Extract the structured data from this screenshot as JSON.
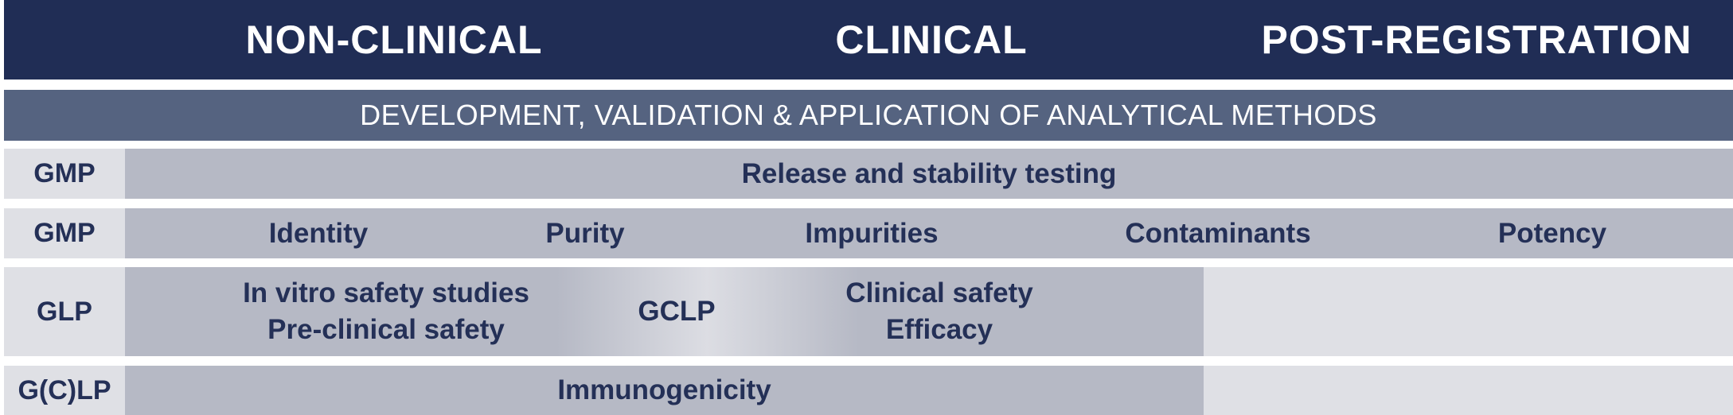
{
  "phases": [
    "NON-CLINICAL",
    "CLINICAL",
    "POST-REGISTRATION"
  ],
  "methods_banner": "DEVELOPMENT, VALIDATION & APPLICATION OF ANALYTICAL METHODS",
  "rows": [
    {
      "tag": "GMP",
      "items": [
        "Release and stability testing"
      ]
    },
    {
      "tag": "GMP",
      "items": [
        "Identity",
        "Purity",
        "Impurities",
        "Contaminants",
        "Potency"
      ]
    },
    {
      "tag": "GLP",
      "left_lines": [
        "In vitro safety studies",
        "Pre-clinical safety"
      ],
      "middle": "GCLP",
      "right_lines": [
        "Clinical safety",
        "Efficacy"
      ]
    },
    {
      "tag": "G(C)LP",
      "items": [
        "Immunogenicity"
      ]
    }
  ],
  "colors": {
    "header": "#202d55",
    "banner": "#556380",
    "bar": "#b6b9c5",
    "tag_bg": "#dfe0e5",
    "text_dark": "#243057"
  }
}
